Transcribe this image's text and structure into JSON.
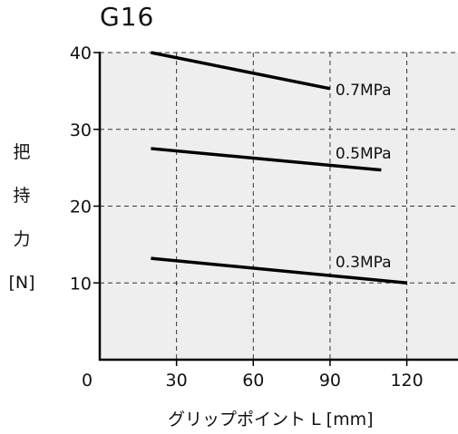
{
  "chart_data": {
    "type": "line",
    "title": "G16",
    "xlabel": "グリップポイント L  [mm]",
    "ylabel_chars": [
      "把",
      "持",
      "力",
      "[N]"
    ],
    "xlim": [
      0,
      140
    ],
    "ylim": [
      0,
      40
    ],
    "xticks": [
      0,
      30,
      60,
      90,
      120
    ],
    "yticks": [
      10,
      20,
      30,
      40
    ],
    "grid": true,
    "background": "#eeeeee",
    "line_color": "#000000",
    "series": [
      {
        "name": "0.7MPa",
        "x": [
          20,
          90
        ],
        "y": [
          40,
          35.3
        ]
      },
      {
        "name": "0.5MPa",
        "x": [
          20,
          110
        ],
        "y": [
          27.5,
          24.7
        ]
      },
      {
        "name": "0.3MPa",
        "x": [
          20,
          120
        ],
        "y": [
          13.2,
          10
        ]
      }
    ]
  }
}
